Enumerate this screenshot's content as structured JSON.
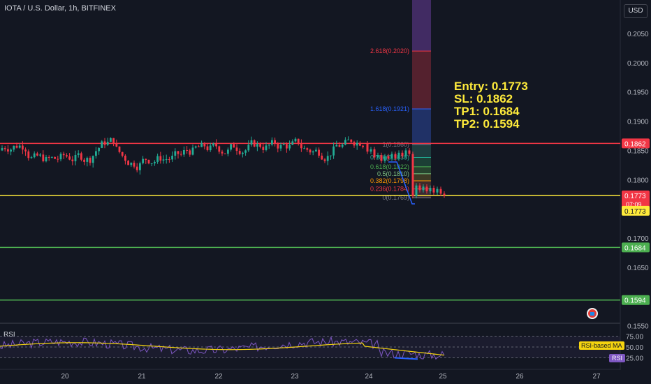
{
  "header": {
    "symbol_title": "IOTA / U.S. Dollar, 1h, BITFINEX",
    "currency_button": "USD"
  },
  "trade_setup": {
    "entry": "Entry: 0.1773",
    "sl": "SL: 0.1862",
    "tp1": "TP1: 0.1684",
    "tp2": "TP2: 0.1594"
  },
  "price_axis": {
    "ticks": [
      "0.2050",
      "0.2000",
      "0.1950",
      "0.1900",
      "0.1850",
      "0.1800",
      "0.1750",
      "0.1700",
      "0.1650",
      "0.1550"
    ],
    "labels": [
      {
        "text": "0.1862",
        "color": "#f23645",
        "price": 0.1862
      },
      {
        "text": "0.1773",
        "color": "#f23645",
        "price": 0.1773,
        "sub": "07:09"
      },
      {
        "text": "0.1773",
        "color": "#ffeb3b",
        "price": 0.1773,
        "dark": true
      },
      {
        "text": "0.1684",
        "color": "#4caf50",
        "price": 0.1684
      },
      {
        "text": "0.1594",
        "color": "#4caf50",
        "price": 0.1594
      }
    ]
  },
  "horizontal_lines": [
    {
      "price": 0.1862,
      "color": "#f23645"
    },
    {
      "price": 0.1773,
      "color": "#ffeb3b"
    },
    {
      "price": 0.1684,
      "color": "#4caf50"
    },
    {
      "price": 0.1594,
      "color": "#4caf50"
    }
  ],
  "fib_levels": [
    {
      "label": "2.618(0.2020)",
      "price": 0.202,
      "color": "#f23645"
    },
    {
      "label": "1.618(0.1921)",
      "price": 0.1921,
      "color": "#2962ff"
    },
    {
      "label": "1(0.1860)",
      "price": 0.186,
      "color": "#787b86"
    },
    {
      "label": "0.786(0.1838)",
      "price": 0.1838,
      "color": "#22ab94"
    },
    {
      "label": "0.618(0.1822)",
      "price": 0.1822,
      "color": "#4caf50"
    },
    {
      "label": "0.5(0.1810)",
      "price": 0.181,
      "color": "#81c784"
    },
    {
      "label": "0.382(0.1798)",
      "price": 0.1798,
      "color": "#ff9800"
    },
    {
      "label": "0.236(0.1784)",
      "price": 0.1784,
      "color": "#f23645"
    },
    {
      "label": "0(0.1769)",
      "price": 0.1769,
      "color": "#787b86"
    }
  ],
  "time_axis": {
    "labels": [
      "20",
      "21",
      "22",
      "23",
      "24",
      "25",
      "26",
      "27"
    ]
  },
  "rsi": {
    "title": "RSI",
    "ticks": [
      "75.00",
      "50.00",
      "25.00"
    ],
    "ma_label": "RSI-based MA",
    "rsi_label": "RSI",
    "rsi_color": "#7e57c2",
    "ma_color": "#f5d40f"
  }
}
